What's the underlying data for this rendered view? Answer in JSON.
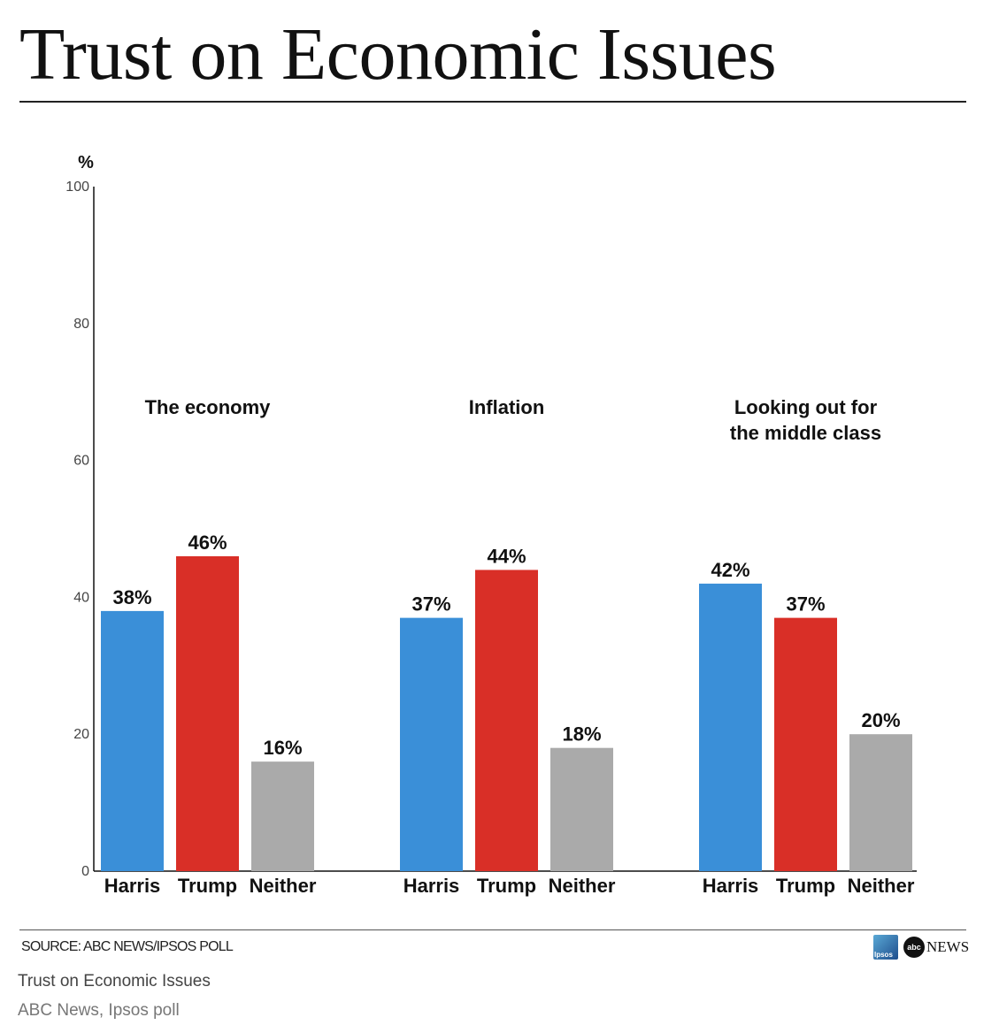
{
  "header": {
    "title": "Trust on Economic Issues"
  },
  "chart_data": {
    "type": "bar",
    "ylabel": "%",
    "ylim": [
      0,
      100
    ],
    "yticks": [
      "0",
      "20",
      "40",
      "60",
      "80",
      "100"
    ],
    "colors": {
      "Harris": "#3a8fd8",
      "Trump": "#d92f27",
      "Neither": "#aaaaaa"
    },
    "groups": [
      {
        "title_lines": [
          "The economy"
        ],
        "bars": [
          {
            "category": "Harris",
            "value": 38,
            "label": "38%"
          },
          {
            "category": "Trump",
            "value": 46,
            "label": "46%"
          },
          {
            "category": "Neither",
            "value": 16,
            "label": "16%"
          }
        ]
      },
      {
        "title_lines": [
          "Inflation"
        ],
        "bars": [
          {
            "category": "Harris",
            "value": 37,
            "label": "37%"
          },
          {
            "category": "Trump",
            "value": 44,
            "label": "44%"
          },
          {
            "category": "Neither",
            "value": 18,
            "label": "18%"
          }
        ]
      },
      {
        "title_lines": [
          "Looking out for",
          "the middle class"
        ],
        "bars": [
          {
            "category": "Harris",
            "value": 42,
            "label": "42%"
          },
          {
            "category": "Trump",
            "value": 37,
            "label": "37%"
          },
          {
            "category": "Neither",
            "value": 20,
            "label": "20%"
          }
        ]
      }
    ]
  },
  "footer": {
    "source": "SOURCE: ABC NEWS/IPSOS POLL",
    "caption": "Trust on Economic Issues",
    "credit": "ABC News, Ipsos poll",
    "logo_ipsos": "Ipsos",
    "logo_abc": "abc",
    "logo_news": "NEWS"
  }
}
